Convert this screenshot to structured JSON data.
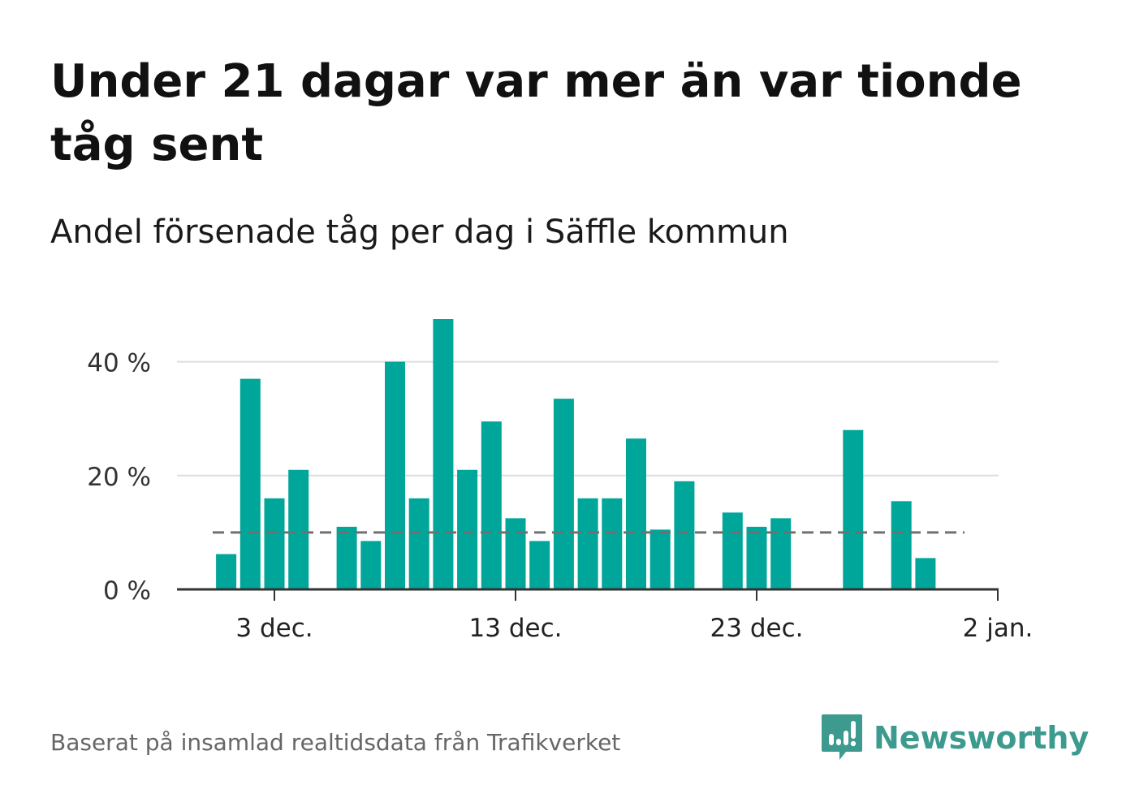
{
  "title": "Under 21 dagar var mer än var tionde tåg sent",
  "subtitle": "Andel försenade tåg per dag i Säffle kommun",
  "source": "Baserat på insamlad realtidsdata från Trafikverket",
  "brand": {
    "name": "Newsworthy",
    "icon": "newsworthy-logo-icon"
  },
  "colors": {
    "bar": "#00a69a",
    "reference": "#707070",
    "grid": "#dddddd",
    "axis": "#333333",
    "brand": "#3c9a8e"
  },
  "chart_data": {
    "type": "bar",
    "x": [
      "2023-12-01",
      "2023-12-02",
      "2023-12-03",
      "2023-12-04",
      "2023-12-05",
      "2023-12-06",
      "2023-12-07",
      "2023-12-08",
      "2023-12-09",
      "2023-12-10",
      "2023-12-11",
      "2023-12-12",
      "2023-12-13",
      "2023-12-14",
      "2023-12-15",
      "2023-12-16",
      "2023-12-17",
      "2023-12-18",
      "2023-12-19",
      "2023-12-20",
      "2023-12-21",
      "2023-12-22",
      "2023-12-23",
      "2023-12-24",
      "2023-12-25",
      "2023-12-26",
      "2023-12-27",
      "2023-12-28",
      "2023-12-29",
      "2023-12-30",
      "2023-12-31"
    ],
    "values": [
      6.2,
      37,
      16,
      21,
      0,
      11,
      8.5,
      40,
      16,
      47.5,
      21,
      29.5,
      12.5,
      8.5,
      33.5,
      16,
      16,
      26.5,
      10.5,
      19,
      0,
      13.5,
      11,
      12.5,
      0,
      0,
      28,
      0,
      15.5,
      5.5,
      0
    ],
    "reference_line": {
      "value": 10,
      "style": "dashed"
    },
    "ylim": [
      0,
      47.5
    ],
    "yticks": [
      0,
      20,
      40
    ],
    "ytick_labels": [
      "0 %",
      "20 %",
      "40 %"
    ],
    "xticks": [
      "2023-12-03",
      "2023-12-13",
      "2023-12-23",
      "2024-01-02"
    ],
    "xtick_labels": [
      "3 dec.",
      "13 dec.",
      "23 dec.",
      "2 jan."
    ],
    "xlim": [
      "2023-11-30",
      "2024-01-02"
    ],
    "grid": "horizontal",
    "xlabel": "",
    "ylabel": ""
  }
}
